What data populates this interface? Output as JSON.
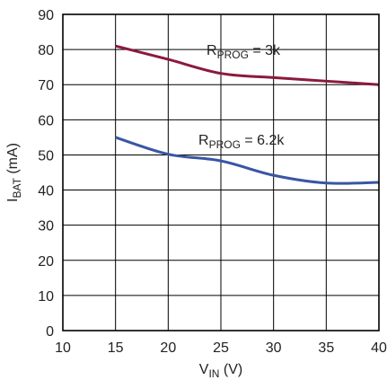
{
  "chart_data": {
    "type": "line",
    "xlabel": {
      "main": "V",
      "sub": "IN",
      "unit": " (V)"
    },
    "ylabel": {
      "main": "I",
      "sub": "BAT",
      "unit": " (mA)"
    },
    "xlim": [
      10,
      40
    ],
    "ylim": [
      0,
      90
    ],
    "xticks": [
      "10",
      "15",
      "20",
      "25",
      "30",
      "35",
      "40"
    ],
    "yticks": [
      "0",
      "10",
      "20",
      "30",
      "40",
      "50",
      "60",
      "70",
      "80",
      "90"
    ],
    "grid": true,
    "series": [
      {
        "name": "RPROG = 3k",
        "label": {
          "main": "R",
          "sub": "PROG",
          "rest": " = 3k"
        },
        "color": "#8b1a3c",
        "x": [
          15,
          20,
          25,
          30,
          35,
          40
        ],
        "y": [
          81,
          77.2,
          73.2,
          72,
          71,
          70
        ]
      },
      {
        "name": "RPROG = 6.2k",
        "label": {
          "main": "R",
          "sub": "PROG",
          "rest": " = 6.2k"
        },
        "color": "#3a55a4",
        "x": [
          15,
          20,
          25,
          30,
          35,
          40
        ],
        "y": [
          55,
          50.2,
          48.3,
          44.2,
          42,
          42.2
        ]
      }
    ]
  }
}
